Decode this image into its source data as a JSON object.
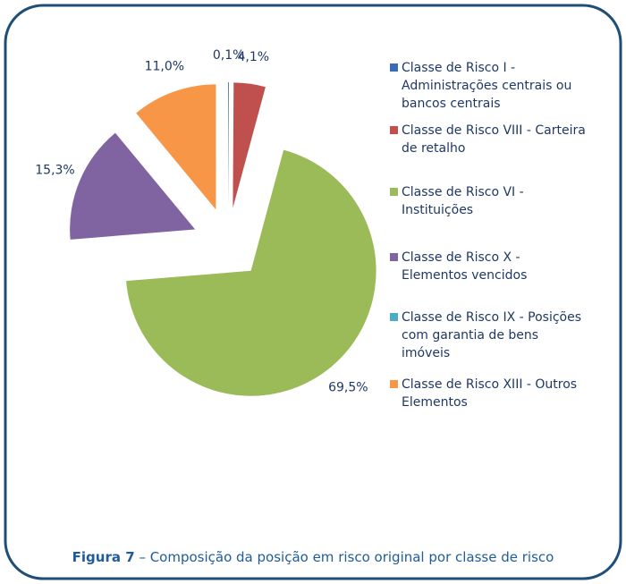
{
  "chart_data": {
    "type": "pie",
    "categories": [
      "Classe de Risco I - Administrações centrais ou bancos centrais",
      "Classe de Risco VIII - Carteira de retalho",
      "Classe de Risco VI - Instituições",
      "Classe de Risco X - Elementos vencidos",
      "Classe de Risco IX - Posições com garantia de bens imóveis",
      "Classe de Risco XIII - Outros Elementos"
    ],
    "values": [
      0.1,
      4.1,
      69.5,
      15.3,
      0,
      11.0
    ],
    "value_labels": [
      "0,1%",
      "4,1%",
      "69,5%",
      "15,3%",
      null,
      "11,0%"
    ],
    "colors": [
      "#3a6bb5",
      "#c0504d",
      "#9bbb59",
      "#8064a2",
      "#4bacc6",
      "#f79646"
    ],
    "legend": "right",
    "caption": {
      "label": "Figura 7",
      "text": "– Composição da posição em risco original por classe de risco"
    }
  }
}
